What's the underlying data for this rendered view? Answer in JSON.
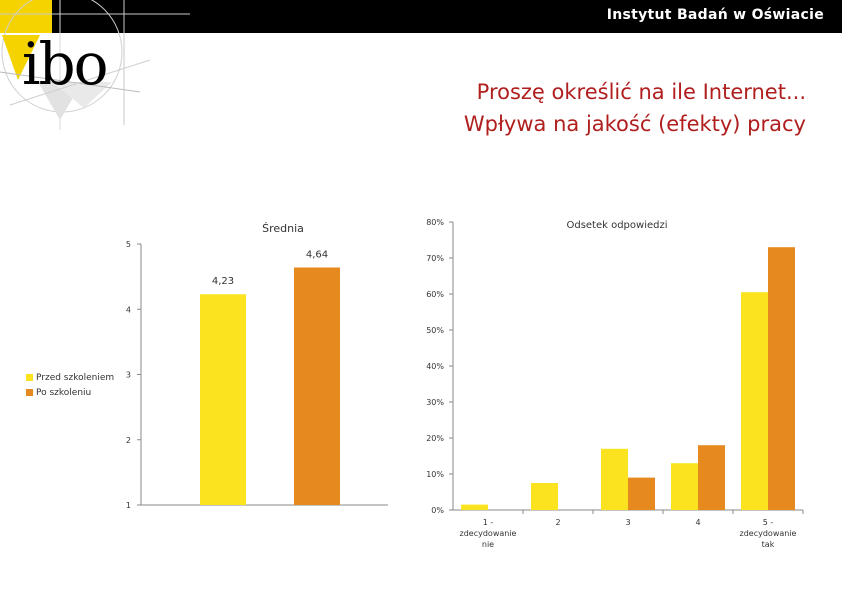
{
  "header": {
    "institute": "Instytut Badań w Oświacie",
    "logo_text": "ibo"
  },
  "title": {
    "line1": "Proszę określić na ile Internet...",
    "line2": "Wpływa na jakość (efekty) pracy"
  },
  "colors": {
    "before": "#fbe41f",
    "after": "#e6891e",
    "title": "#b01e1e"
  },
  "legend": [
    {
      "label": "Przed szkoleniem",
      "color": "#fbe41f"
    },
    {
      "label": "Po szkoleniu",
      "color": "#e6891e"
    }
  ],
  "chart_data": [
    {
      "type": "bar",
      "title": "Średnia",
      "categories": [
        ""
      ],
      "series": [
        {
          "name": "Przed szkoleniem",
          "values": [
            4.23
          ],
          "label": "4,23"
        },
        {
          "name": "Po szkoleniu",
          "values": [
            4.64
          ],
          "label": "4,64"
        }
      ],
      "ylim": [
        1,
        5
      ],
      "yticks": [
        "1",
        "2",
        "3",
        "4",
        "5"
      ]
    },
    {
      "type": "bar",
      "title": "Odsetek odpowiedzi",
      "categories": [
        [
          "1 -",
          "zdecydowanie",
          "nie"
        ],
        [
          "2"
        ],
        [
          "3"
        ],
        [
          "4"
        ],
        [
          "5 -",
          "zdecydowanie",
          "tak"
        ]
      ],
      "series": [
        {
          "name": "Przed szkoleniem",
          "values": [
            1.5,
            7.5,
            17,
            13,
            60.5
          ]
        },
        {
          "name": "Po szkoleniu",
          "values": [
            0,
            0,
            9,
            18,
            73
          ]
        }
      ],
      "ylim": [
        0,
        80
      ],
      "yticks": [
        "0%",
        "10%",
        "20%",
        "30%",
        "40%",
        "50%",
        "60%",
        "70%",
        "80%"
      ]
    }
  ]
}
